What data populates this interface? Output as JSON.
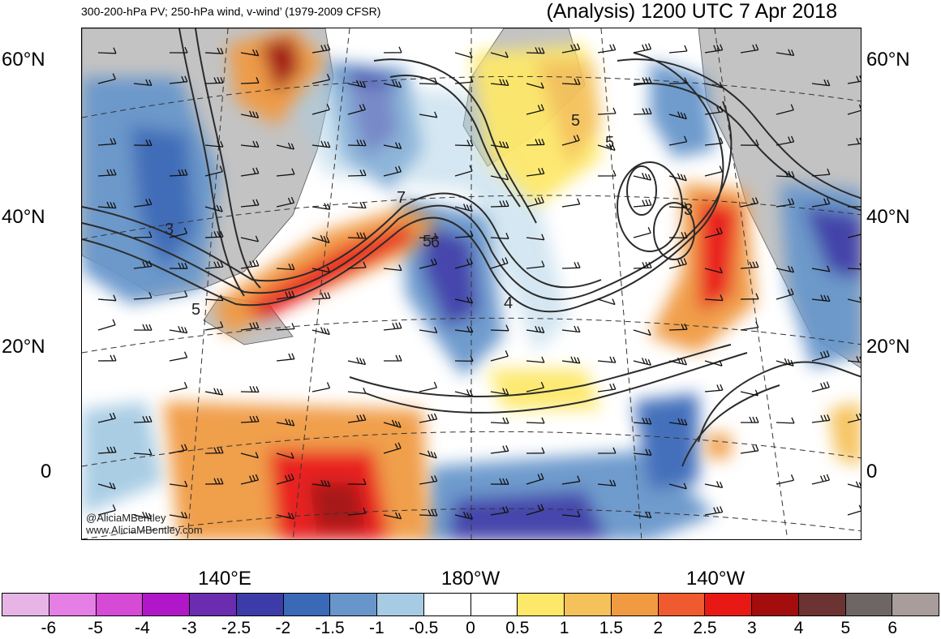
{
  "header": {
    "subtitle": "300-200-hPa PV; 250-hPa wind, v-wind’ (1979-2009 CFSR)",
    "title": "(Analysis) 1200 UTC 7 Apr 2018"
  },
  "map": {
    "lat_labels": [
      "60°N",
      "40°N",
      "20°N",
      "0"
    ],
    "lon_labels": [
      "140°E",
      "180°W",
      "140°W"
    ],
    "contour_labels": [
      "3",
      "5",
      "7",
      "5",
      "6",
      "5",
      "5",
      "3",
      "4"
    ],
    "credit": [
      "@AliciaMBentley",
      "www.AliciaMBentley.com"
    ]
  },
  "colorbar": {
    "labels": [
      "-6",
      "-5",
      "-4",
      "-3",
      "-2.5",
      "-2",
      "-1.5",
      "-1",
      "-0.5",
      "0",
      "0.5",
      "1",
      "1.5",
      "2",
      "2.5",
      "3",
      "4",
      "5",
      "6"
    ],
    "colors": [
      "#e6b5e6",
      "#e57fe5",
      "#d64bd6",
      "#b017c8",
      "#6a2db0",
      "#3c3ca8",
      "#3a69b8",
      "#6896cb",
      "#a6cbe3",
      "#ffffff",
      "#ffffff",
      "#fde86a",
      "#f5c15a",
      "#f09a42",
      "#ef5a2e",
      "#e81914",
      "#a30d0d",
      "#6b3331",
      "#6e6565",
      "#a89d9b"
    ]
  }
}
